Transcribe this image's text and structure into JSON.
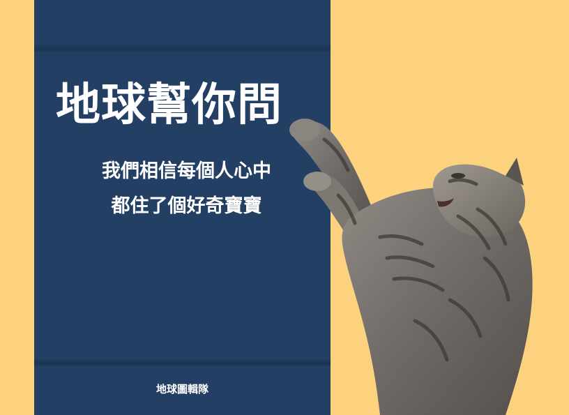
{
  "card": {
    "title": "地球幫你問",
    "subtitle_lines": [
      "我們相信每個人心中",
      "都住了個好奇寶寶"
    ],
    "footer": "地球圖輯隊"
  },
  "image": {
    "subject": "cat-photo"
  },
  "colors": {
    "background": "#fcd27f",
    "panel": "#233f63",
    "text": "#ffffff"
  }
}
